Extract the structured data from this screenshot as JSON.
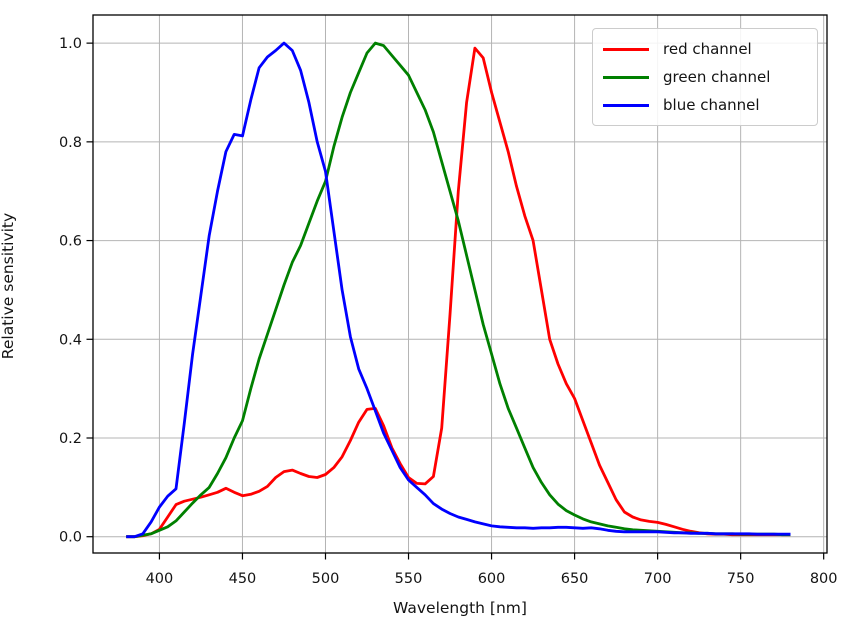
{
  "chart_data": {
    "type": "line",
    "title": "",
    "xlabel": "Wavelength [nm]",
    "ylabel": "Relative sensitivity",
    "xlim": [
      360,
      802
    ],
    "ylim": [
      -0.033,
      1.057
    ],
    "xticks": [
      400,
      450,
      500,
      550,
      600,
      650,
      700,
      750,
      800
    ],
    "xticklabels": [
      "400",
      "450",
      "500",
      "550",
      "600",
      "650",
      "700",
      "750",
      "800"
    ],
    "yticks": [
      0.0,
      0.2,
      0.4,
      0.6,
      0.8,
      1.0
    ],
    "yticklabels": [
      "0.0",
      "0.2",
      "0.4",
      "0.6",
      "0.8",
      "1.0"
    ],
    "grid": true,
    "grid_color": "#b4b4b4",
    "legend_position": "upper right",
    "x": [
      380,
      385,
      390,
      395,
      400,
      405,
      410,
      415,
      420,
      425,
      430,
      435,
      440,
      445,
      450,
      455,
      460,
      465,
      470,
      475,
      480,
      485,
      490,
      495,
      500,
      505,
      510,
      515,
      520,
      525,
      530,
      535,
      540,
      545,
      550,
      555,
      560,
      565,
      570,
      575,
      580,
      585,
      590,
      595,
      600,
      605,
      610,
      615,
      620,
      625,
      630,
      635,
      640,
      645,
      650,
      655,
      660,
      665,
      670,
      675,
      680,
      685,
      690,
      695,
      700,
      705,
      710,
      715,
      720,
      725,
      730,
      735,
      740,
      745,
      750,
      755,
      760,
      765,
      770,
      775,
      780
    ],
    "series": [
      {
        "name": "red channel",
        "color": "#ff0000",
        "values": [
          0,
          0,
          0.002,
          0.006,
          0.015,
          0.04,
          0.065,
          0.072,
          0.076,
          0.08,
          0.085,
          0.09,
          0.098,
          0.09,
          0.083,
          0.086,
          0.092,
          0.102,
          0.12,
          0.132,
          0.135,
          0.128,
          0.122,
          0.12,
          0.126,
          0.14,
          0.162,
          0.195,
          0.232,
          0.258,
          0.26,
          0.225,
          0.18,
          0.148,
          0.12,
          0.108,
          0.107,
          0.122,
          0.22,
          0.45,
          0.7,
          0.88,
          0.99,
          0.97,
          0.9,
          0.84,
          0.78,
          0.71,
          0.65,
          0.6,
          0.5,
          0.4,
          0.35,
          0.31,
          0.28,
          0.235,
          0.19,
          0.145,
          0.11,
          0.075,
          0.05,
          0.04,
          0.034,
          0.031,
          0.029,
          0.025,
          0.02,
          0.015,
          0.011,
          0.008,
          0.006,
          0.005,
          0.005,
          0.004,
          0.004,
          0.004,
          0.004,
          0.004,
          0.004,
          0.004,
          0.004
        ]
      },
      {
        "name": "green channel",
        "color": "#008000",
        "values": [
          0,
          0,
          0.003,
          0.006,
          0.013,
          0.02,
          0.032,
          0.05,
          0.068,
          0.085,
          0.1,
          0.128,
          0.16,
          0.2,
          0.235,
          0.3,
          0.36,
          0.41,
          0.46,
          0.51,
          0.556,
          0.59,
          0.635,
          0.68,
          0.72,
          0.79,
          0.85,
          0.9,
          0.94,
          0.98,
          1.0,
          0.995,
          0.975,
          0.955,
          0.935,
          0.9,
          0.865,
          0.82,
          0.76,
          0.7,
          0.64,
          0.57,
          0.5,
          0.43,
          0.37,
          0.31,
          0.26,
          0.22,
          0.18,
          0.14,
          0.11,
          0.085,
          0.066,
          0.053,
          0.044,
          0.036,
          0.03,
          0.026,
          0.022,
          0.019,
          0.016,
          0.014,
          0.013,
          0.012,
          0.011,
          0.01,
          0.009,
          0.008,
          0.008,
          0.007,
          0.007,
          0.006,
          0.006,
          0.006,
          0.005,
          0.005,
          0.005,
          0.005,
          0.005,
          0.004,
          0.004
        ]
      },
      {
        "name": "blue channel",
        "color": "#0000ff",
        "values": [
          0,
          0,
          0.006,
          0.03,
          0.06,
          0.082,
          0.097,
          0.23,
          0.37,
          0.49,
          0.61,
          0.7,
          0.78,
          0.815,
          0.812,
          0.885,
          0.95,
          0.972,
          0.985,
          1.0,
          0.985,
          0.945,
          0.88,
          0.8,
          0.74,
          0.62,
          0.5,
          0.405,
          0.34,
          0.3,
          0.255,
          0.21,
          0.175,
          0.14,
          0.115,
          0.1,
          0.085,
          0.067,
          0.056,
          0.047,
          0.04,
          0.035,
          0.03,
          0.026,
          0.022,
          0.02,
          0.019,
          0.018,
          0.018,
          0.017,
          0.018,
          0.018,
          0.019,
          0.019,
          0.018,
          0.017,
          0.018,
          0.016,
          0.013,
          0.011,
          0.01,
          0.01,
          0.01,
          0.01,
          0.01,
          0.009,
          0.008,
          0.008,
          0.007,
          0.007,
          0.007,
          0.006,
          0.006,
          0.006,
          0.006,
          0.006,
          0.005,
          0.005,
          0.005,
          0.005,
          0.005
        ]
      }
    ]
  }
}
